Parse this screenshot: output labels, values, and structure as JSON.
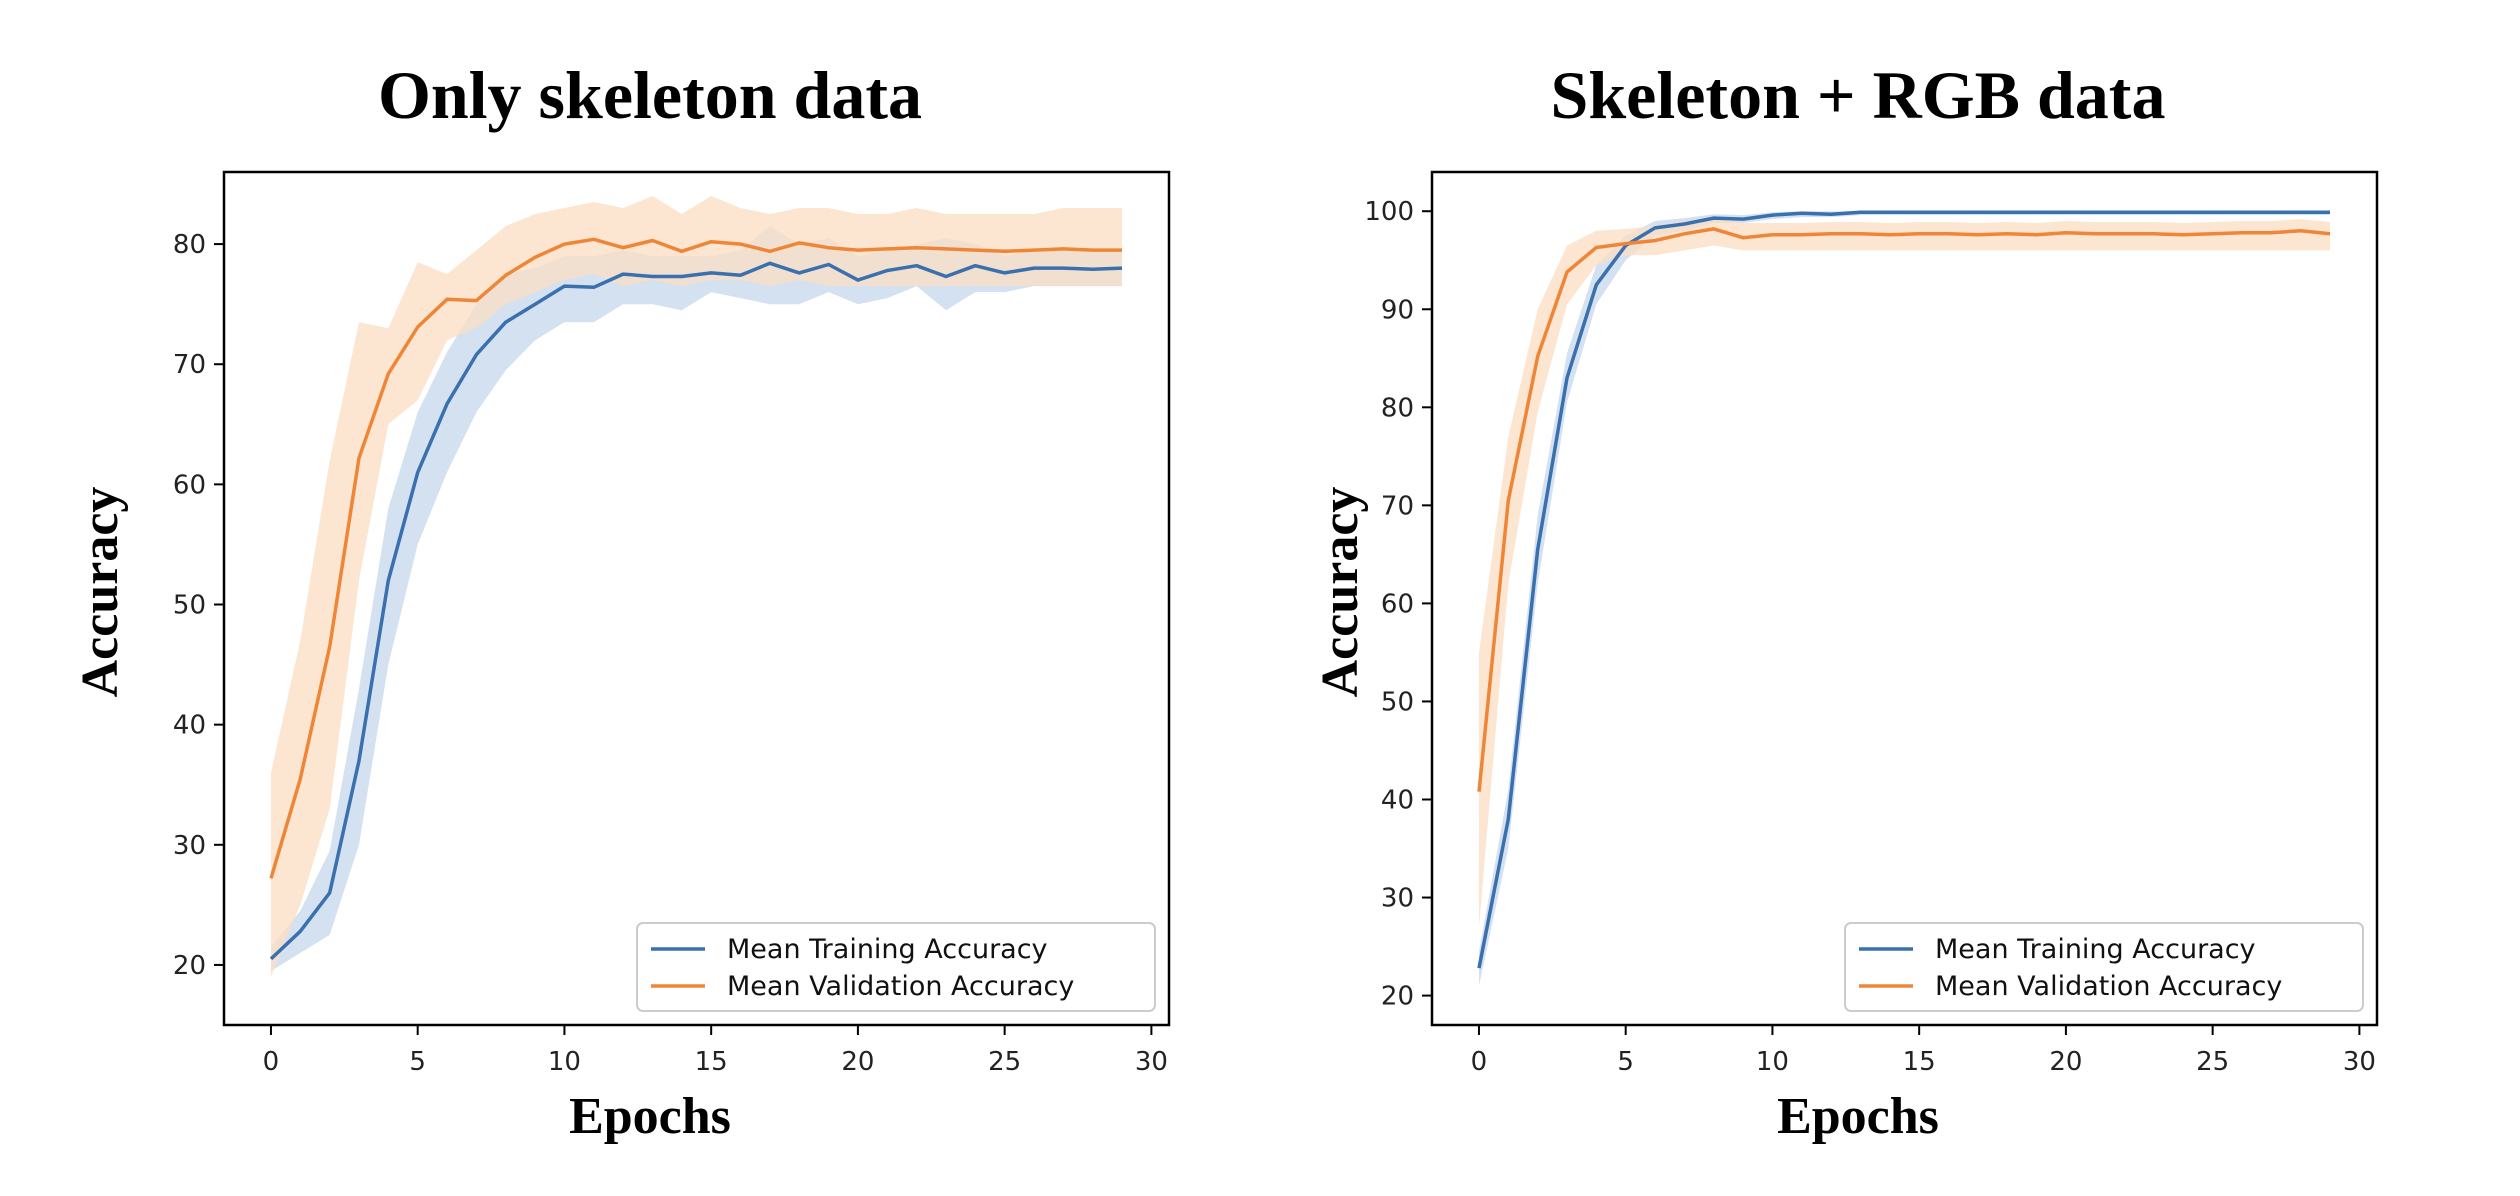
{
  "chart_data": [
    {
      "type": "line",
      "title": "Only skeleton data",
      "xlabel": "Epochs",
      "ylabel": "Accuracy",
      "xlim": [
        -1.6,
        30.6
      ],
      "ylim": [
        15,
        86
      ],
      "xticks": [
        0,
        5,
        10,
        15,
        20,
        25,
        30
      ],
      "yticks": [
        20,
        30,
        40,
        50,
        60,
        70,
        80
      ],
      "grid": false,
      "legend_position": "lower-right",
      "x": [
        0,
        1,
        2,
        3,
        4,
        5,
        6,
        7,
        8,
        9,
        10,
        11,
        12,
        13,
        14,
        15,
        16,
        17,
        18,
        19,
        20,
        21,
        22,
        23,
        24,
        25,
        26,
        27,
        28,
        29
      ],
      "series": [
        {
          "name": "Mean Training Accuracy",
          "color": "#3a70ad",
          "band_color": "#c6d7ec",
          "values": [
            20.5,
            22.8,
            26.0,
            37.0,
            52.0,
            61.0,
            66.7,
            70.8,
            73.5,
            75.0,
            76.5,
            76.4,
            77.5,
            77.3,
            77.3,
            77.6,
            77.4,
            78.4,
            77.6,
            78.3,
            77.0,
            77.8,
            78.2,
            77.3,
            78.2,
            77.6,
            78.0,
            78.0,
            77.9,
            78.0
          ],
          "lower": [
            19.5,
            21.0,
            22.5,
            30.0,
            45.0,
            55.0,
            61.0,
            66.0,
            69.5,
            72.0,
            73.5,
            73.5,
            75.0,
            75.0,
            74.5,
            76.0,
            75.5,
            75.0,
            75.0,
            76.0,
            75.0,
            75.5,
            76.5,
            74.5,
            76.0,
            76.0,
            76.5,
            76.5,
            76.5,
            76.5
          ],
          "upper": [
            21.5,
            24.5,
            29.5,
            43.0,
            58.0,
            66.0,
            71.0,
            75.0,
            77.5,
            78.0,
            79.0,
            79.0,
            79.5,
            79.0,
            79.0,
            79.0,
            79.5,
            81.5,
            80.0,
            80.5,
            79.0,
            79.5,
            80.0,
            80.5,
            80.0,
            79.0,
            79.5,
            79.5,
            79.5,
            79.5
          ]
        },
        {
          "name": "Mean Validation Accuracy",
          "color": "#ef8637",
          "band_color": "#fbddc3",
          "values": [
            27.2,
            35.5,
            46.5,
            62.2,
            69.2,
            73.1,
            75.4,
            75.3,
            77.4,
            78.9,
            80.0,
            80.4,
            79.7,
            80.3,
            79.4,
            80.2,
            80.0,
            79.4,
            80.1,
            79.7,
            79.5,
            79.6,
            79.7,
            79.6,
            79.5,
            79.4,
            79.5,
            79.6,
            79.5,
            79.5
          ],
          "lower": [
            19.0,
            25.0,
            33.0,
            52.0,
            65.0,
            67.0,
            72.0,
            73.0,
            75.0,
            76.0,
            77.0,
            77.5,
            76.5,
            77.0,
            76.5,
            77.0,
            77.0,
            76.5,
            77.0,
            76.5,
            76.5,
            76.5,
            76.5,
            76.5,
            76.5,
            76.5,
            76.5,
            76.5,
            76.5,
            76.5
          ],
          "upper": [
            36.0,
            47.0,
            62.0,
            73.5,
            73.0,
            78.5,
            77.5,
            79.5,
            81.5,
            82.5,
            83.0,
            83.5,
            83.0,
            84.0,
            82.5,
            84.0,
            83.0,
            82.5,
            83.0,
            83.0,
            82.5,
            82.5,
            83.0,
            82.5,
            82.5,
            82.5,
            82.5,
            83.0,
            83.0,
            83.0
          ]
        }
      ]
    },
    {
      "type": "line",
      "title": "Skeleton + RGB data",
      "xlabel": "Epochs",
      "ylabel": "Accuracy",
      "xlim": [
        -1.6,
        30.6
      ],
      "ylim": [
        17,
        104
      ],
      "xticks": [
        0,
        5,
        10,
        15,
        20,
        25,
        30
      ],
      "yticks": [
        20,
        30,
        40,
        50,
        60,
        70,
        80,
        90,
        100
      ],
      "grid": false,
      "legend_position": "lower-right",
      "x": [
        0,
        1,
        2,
        3,
        4,
        5,
        6,
        7,
        8,
        9,
        10,
        11,
        12,
        13,
        14,
        15,
        16,
        17,
        18,
        19,
        20,
        21,
        22,
        23,
        24,
        25,
        26,
        27,
        28,
        29
      ],
      "series": [
        {
          "name": "Mean Training Accuracy",
          "color": "#3a70ad",
          "band_color": "#c6d7ec",
          "values": [
            22.8,
            38.0,
            65.5,
            83.0,
            92.5,
            96.5,
            98.3,
            98.7,
            99.3,
            99.2,
            99.6,
            99.8,
            99.7,
            99.9,
            99.9,
            99.9,
            99.9,
            99.9,
            99.9,
            99.9,
            99.9,
            99.9,
            99.9,
            99.9,
            99.9,
            99.9,
            99.9,
            99.9,
            99.9,
            99.9
          ],
          "lower": [
            21.0,
            35.0,
            62.0,
            80.5,
            90.5,
            95.0,
            97.5,
            98.0,
            98.8,
            98.8,
            99.2,
            99.4,
            99.4,
            99.6,
            99.6,
            99.6,
            99.6,
            99.6,
            99.6,
            99.6,
            99.6,
            99.6,
            99.6,
            99.6,
            99.6,
            99.6,
            99.6,
            99.6,
            99.6,
            99.6
          ],
          "upper": [
            24.5,
            41.0,
            69.0,
            85.5,
            94.5,
            97.5,
            99.0,
            99.3,
            99.7,
            99.6,
            99.9,
            100.0,
            100.0,
            100.0,
            100.0,
            100.0,
            100.0,
            100.0,
            100.0,
            100.0,
            100.0,
            100.0,
            100.0,
            100.0,
            100.0,
            100.0,
            100.0,
            100.0,
            100.0,
            100.0
          ]
        },
        {
          "name": "Mean Validation Accuracy",
          "color": "#ef8637",
          "band_color": "#fbddc3",
          "values": [
            40.8,
            70.5,
            85.2,
            93.8,
            96.3,
            96.7,
            97.0,
            97.7,
            98.2,
            97.3,
            97.6,
            97.6,
            97.7,
            97.7,
            97.6,
            97.7,
            97.7,
            97.6,
            97.7,
            97.6,
            97.8,
            97.7,
            97.7,
            97.7,
            97.6,
            97.7,
            97.8,
            97.8,
            98.0,
            97.7
          ],
          "lower": [
            27.0,
            62.0,
            79.5,
            90.5,
            94.5,
            95.5,
            95.5,
            96.0,
            96.5,
            96.0,
            96.0,
            96.0,
            96.0,
            96.0,
            96.0,
            96.0,
            96.0,
            96.0,
            96.0,
            96.0,
            96.0,
            96.0,
            96.0,
            96.0,
            96.0,
            96.0,
            96.0,
            96.0,
            96.0,
            96.0
          ],
          "upper": [
            55.0,
            77.0,
            90.0,
            96.5,
            98.0,
            98.2,
            98.5,
            99.0,
            99.4,
            98.8,
            98.8,
            98.8,
            98.9,
            98.9,
            98.8,
            98.9,
            98.9,
            98.8,
            98.9,
            98.8,
            99.0,
            98.9,
            98.9,
            98.9,
            98.8,
            98.9,
            99.0,
            99.0,
            99.2,
            98.9
          ]
        }
      ]
    }
  ]
}
